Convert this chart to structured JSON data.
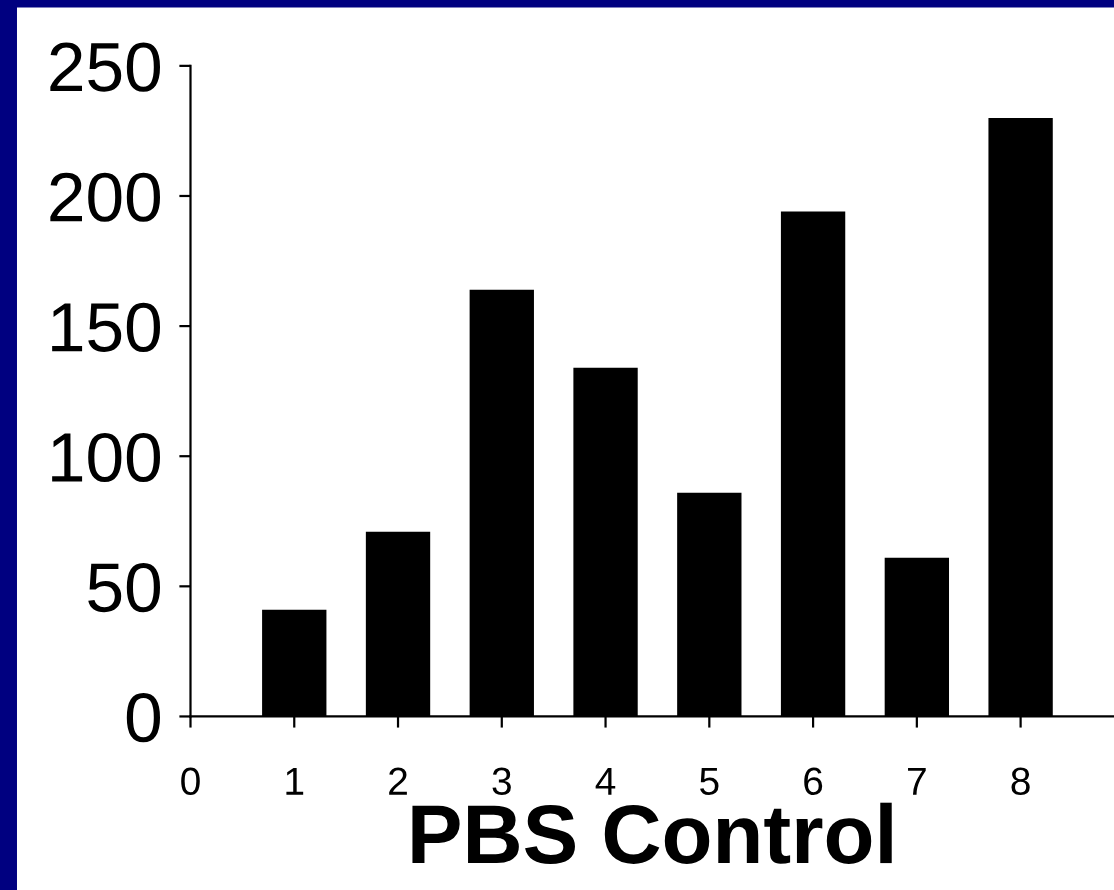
{
  "chart_data": {
    "type": "bar",
    "xlabel": "PBS Control",
    "x": [
      1,
      2,
      3,
      4,
      5,
      6,
      7,
      8
    ],
    "values": [
      41,
      71,
      164,
      134,
      86,
      194,
      61,
      230
    ],
    "color": "#000000",
    "xlim": [
      0,
      8.9
    ],
    "xticks": [
      0,
      1,
      2,
      3,
      4,
      5,
      6,
      7,
      8
    ],
    "ylim": [
      0,
      250
    ],
    "yticks": [
      0,
      50,
      100,
      150,
      200,
      250
    ],
    "grid": false,
    "legend": false
  }
}
